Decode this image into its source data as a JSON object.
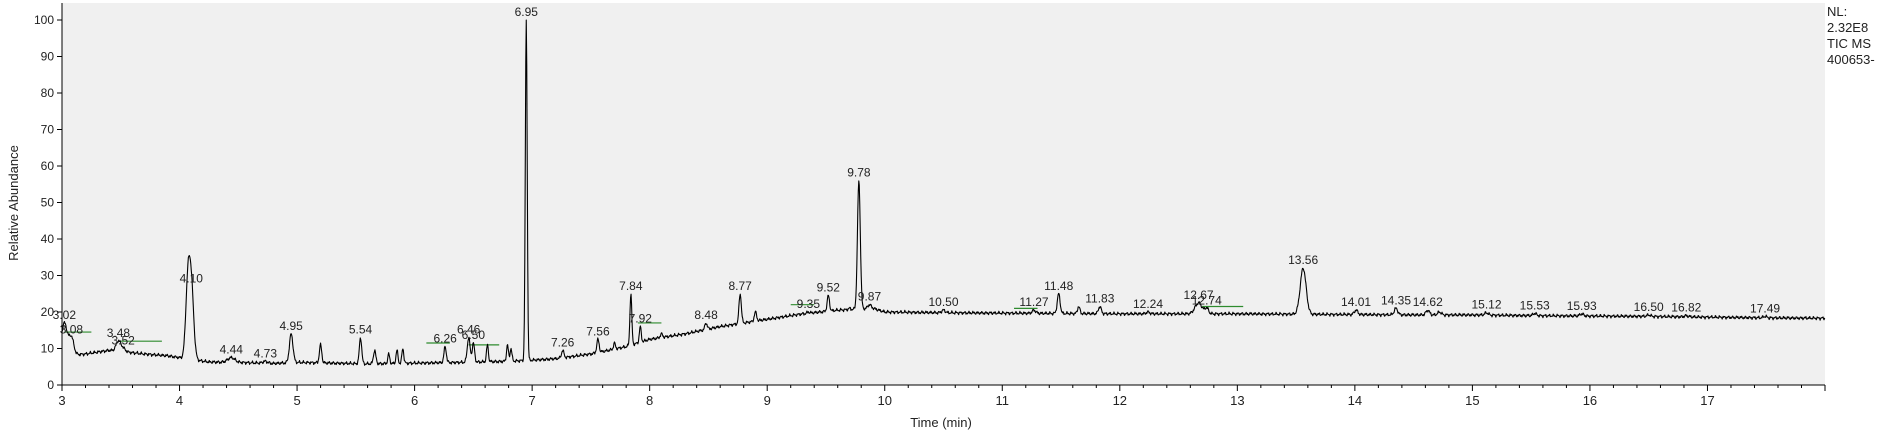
{
  "chart_data": {
    "type": "line",
    "xlabel": "Time (min)",
    "ylabel": "Relative Abundance",
    "xlim": [
      3.0,
      18.0
    ],
    "ylim": [
      0,
      100
    ],
    "x_ticks": [
      3,
      4,
      5,
      6,
      7,
      8,
      9,
      10,
      11,
      12,
      13,
      14,
      15,
      16,
      17
    ],
    "y_ticks": [
      0,
      10,
      20,
      30,
      40,
      50,
      60,
      70,
      80,
      90,
      100
    ],
    "grid": false,
    "line_color": "#000000",
    "baseline_marker_color": "#2e8b2e",
    "background_color": "#f0f0f0",
    "baseline": [
      [
        3.0,
        8
      ],
      [
        3.2,
        8.5
      ],
      [
        3.4,
        9.5
      ],
      [
        3.5,
        9.2
      ],
      [
        3.7,
        8.5
      ],
      [
        3.9,
        8.0
      ],
      [
        4.0,
        7.5
      ],
      [
        4.25,
        6.3
      ],
      [
        4.5,
        6.2
      ],
      [
        4.8,
        5.9
      ],
      [
        5.0,
        6.2
      ],
      [
        5.3,
        6.0
      ],
      [
        5.6,
        5.8
      ],
      [
        6.0,
        6.0
      ],
      [
        6.4,
        6.2
      ],
      [
        6.8,
        6.5
      ],
      [
        7.0,
        6.8
      ],
      [
        7.2,
        7.2
      ],
      [
        7.5,
        8.5
      ],
      [
        7.8,
        10.5
      ],
      [
        8.0,
        12.5
      ],
      [
        8.3,
        14.0
      ],
      [
        8.6,
        16.0
      ],
      [
        9.0,
        18.0
      ],
      [
        9.3,
        19.5
      ],
      [
        9.6,
        20.5
      ],
      [
        9.9,
        21.0
      ],
      [
        10.0,
        20.0
      ],
      [
        10.5,
        19.8
      ],
      [
        11.0,
        19.7
      ],
      [
        11.5,
        19.6
      ],
      [
        12.0,
        19.5
      ],
      [
        12.5,
        19.5
      ],
      [
        13.0,
        19.5
      ],
      [
        13.5,
        19.4
      ],
      [
        14.0,
        19.3
      ],
      [
        14.5,
        19.2
      ],
      [
        15.0,
        19.2
      ],
      [
        15.5,
        19.0
      ],
      [
        16.0,
        18.9
      ],
      [
        16.5,
        18.8
      ],
      [
        17.0,
        18.6
      ],
      [
        17.5,
        18.4
      ],
      [
        18.0,
        18.3
      ]
    ],
    "peaks": [
      {
        "rt": 3.02,
        "height": 17,
        "width": 0.025,
        "label": "3.02"
      },
      {
        "rt": 3.08,
        "height": 13,
        "width": 0.02,
        "label": "3.08"
      },
      {
        "rt": 3.48,
        "height": 12,
        "width": 0.02,
        "label": "3.48"
      },
      {
        "rt": 3.52,
        "height": 10,
        "width": 0.02,
        "label": "3.52"
      },
      {
        "rt": 4.07,
        "height": 26,
        "width": 0.018,
        "label": ""
      },
      {
        "rt": 4.1,
        "height": 27,
        "width": 0.02,
        "label": "4.10"
      },
      {
        "rt": 4.44,
        "height": 7.5,
        "width": 0.03,
        "label": "4.44"
      },
      {
        "rt": 4.73,
        "height": 6.5,
        "width": 0.02,
        "label": "4.73"
      },
      {
        "rt": 4.95,
        "height": 14,
        "width": 0.015,
        "label": "4.95"
      },
      {
        "rt": 5.2,
        "height": 11,
        "width": 0.01,
        "label": ""
      },
      {
        "rt": 5.54,
        "height": 13,
        "width": 0.01,
        "label": "5.54"
      },
      {
        "rt": 5.66,
        "height": 9.5,
        "width": 0.01,
        "label": ""
      },
      {
        "rt": 5.78,
        "height": 8.5,
        "width": 0.008,
        "label": ""
      },
      {
        "rt": 5.85,
        "height": 9.5,
        "width": 0.008,
        "label": ""
      },
      {
        "rt": 5.9,
        "height": 10,
        "width": 0.008,
        "label": ""
      },
      {
        "rt": 6.26,
        "height": 10.5,
        "width": 0.01,
        "label": "6.26"
      },
      {
        "rt": 6.46,
        "height": 13,
        "width": 0.012,
        "label": "6.46"
      },
      {
        "rt": 6.5,
        "height": 11.5,
        "width": 0.01,
        "label": "6.50"
      },
      {
        "rt": 6.62,
        "height": 11,
        "width": 0.008,
        "label": ""
      },
      {
        "rt": 6.79,
        "height": 11,
        "width": 0.008,
        "label": ""
      },
      {
        "rt": 6.82,
        "height": 10,
        "width": 0.008,
        "label": ""
      },
      {
        "rt": 6.95,
        "height": 100,
        "width": 0.008,
        "label": "6.95"
      },
      {
        "rt": 7.26,
        "height": 9.5,
        "width": 0.01,
        "label": "7.26"
      },
      {
        "rt": 7.56,
        "height": 12.5,
        "width": 0.01,
        "label": "7.56"
      },
      {
        "rt": 7.7,
        "height": 11.5,
        "width": 0.008,
        "label": ""
      },
      {
        "rt": 7.84,
        "height": 25,
        "width": 0.008,
        "label": "7.84"
      },
      {
        "rt": 7.92,
        "height": 16,
        "width": 0.008,
        "label": "7.92"
      },
      {
        "rt": 8.1,
        "height": 14,
        "width": 0.01,
        "label": ""
      },
      {
        "rt": 8.48,
        "height": 17,
        "width": 0.01,
        "label": "8.48"
      },
      {
        "rt": 8.77,
        "height": 25,
        "width": 0.01,
        "label": "8.77"
      },
      {
        "rt": 8.9,
        "height": 20,
        "width": 0.01,
        "label": ""
      },
      {
        "rt": 9.35,
        "height": 20,
        "width": 0.01,
        "label": "9.35"
      },
      {
        "rt": 9.52,
        "height": 24.5,
        "width": 0.01,
        "label": "9.52"
      },
      {
        "rt": 9.7,
        "height": 21,
        "width": 0.01,
        "label": ""
      },
      {
        "rt": 9.78,
        "height": 56,
        "width": 0.012,
        "label": "9.78"
      },
      {
        "rt": 9.87,
        "height": 22,
        "width": 0.015,
        "label": "9.87"
      },
      {
        "rt": 10.5,
        "height": 20.5,
        "width": 0.015,
        "label": "10.50"
      },
      {
        "rt": 11.27,
        "height": 20.5,
        "width": 0.015,
        "label": "11.27"
      },
      {
        "rt": 11.48,
        "height": 25,
        "width": 0.012,
        "label": "11.48"
      },
      {
        "rt": 11.65,
        "height": 21.5,
        "width": 0.01,
        "label": ""
      },
      {
        "rt": 11.83,
        "height": 21.5,
        "width": 0.012,
        "label": "11.83"
      },
      {
        "rt": 12.24,
        "height": 20,
        "width": 0.015,
        "label": "12.24"
      },
      {
        "rt": 12.67,
        "height": 22.5,
        "width": 0.03,
        "label": "12.67"
      },
      {
        "rt": 12.74,
        "height": 21,
        "width": 0.015,
        "label": "12.74"
      },
      {
        "rt": 13.56,
        "height": 32,
        "width": 0.025,
        "label": "13.56"
      },
      {
        "rt": 14.01,
        "height": 20.5,
        "width": 0.015,
        "label": "14.01"
      },
      {
        "rt": 14.35,
        "height": 21,
        "width": 0.015,
        "label": "14.35"
      },
      {
        "rt": 14.62,
        "height": 20.5,
        "width": 0.015,
        "label": "14.62"
      },
      {
        "rt": 14.72,
        "height": 20,
        "width": 0.015,
        "label": ""
      },
      {
        "rt": 15.12,
        "height": 19.8,
        "width": 0.015,
        "label": "15.12"
      },
      {
        "rt": 15.53,
        "height": 19.6,
        "width": 0.015,
        "label": "15.53"
      },
      {
        "rt": 15.93,
        "height": 19.5,
        "width": 0.015,
        "label": "15.93"
      },
      {
        "rt": 16.5,
        "height": 19.2,
        "width": 0.015,
        "label": "16.50"
      },
      {
        "rt": 16.82,
        "height": 19.0,
        "width": 0.015,
        "label": "16.82"
      },
      {
        "rt": 17.49,
        "height": 18.8,
        "width": 0.015,
        "label": "17.49"
      }
    ],
    "integration_marks": [
      [
        3.02,
        3.25,
        14.5
      ],
      [
        3.5,
        3.85,
        12.0
      ],
      [
        6.1,
        6.3,
        11.5
      ],
      [
        6.46,
        6.72,
        11.0
      ],
      [
        7.9,
        8.1,
        17.0
      ],
      [
        9.2,
        9.4,
        22.0
      ],
      [
        11.1,
        11.3,
        21.0
      ],
      [
        12.7,
        13.05,
        21.5
      ]
    ]
  },
  "info": {
    "lines": [
      "NL:",
      "2.32E8",
      "TIC  MS",
      "400653-"
    ]
  }
}
